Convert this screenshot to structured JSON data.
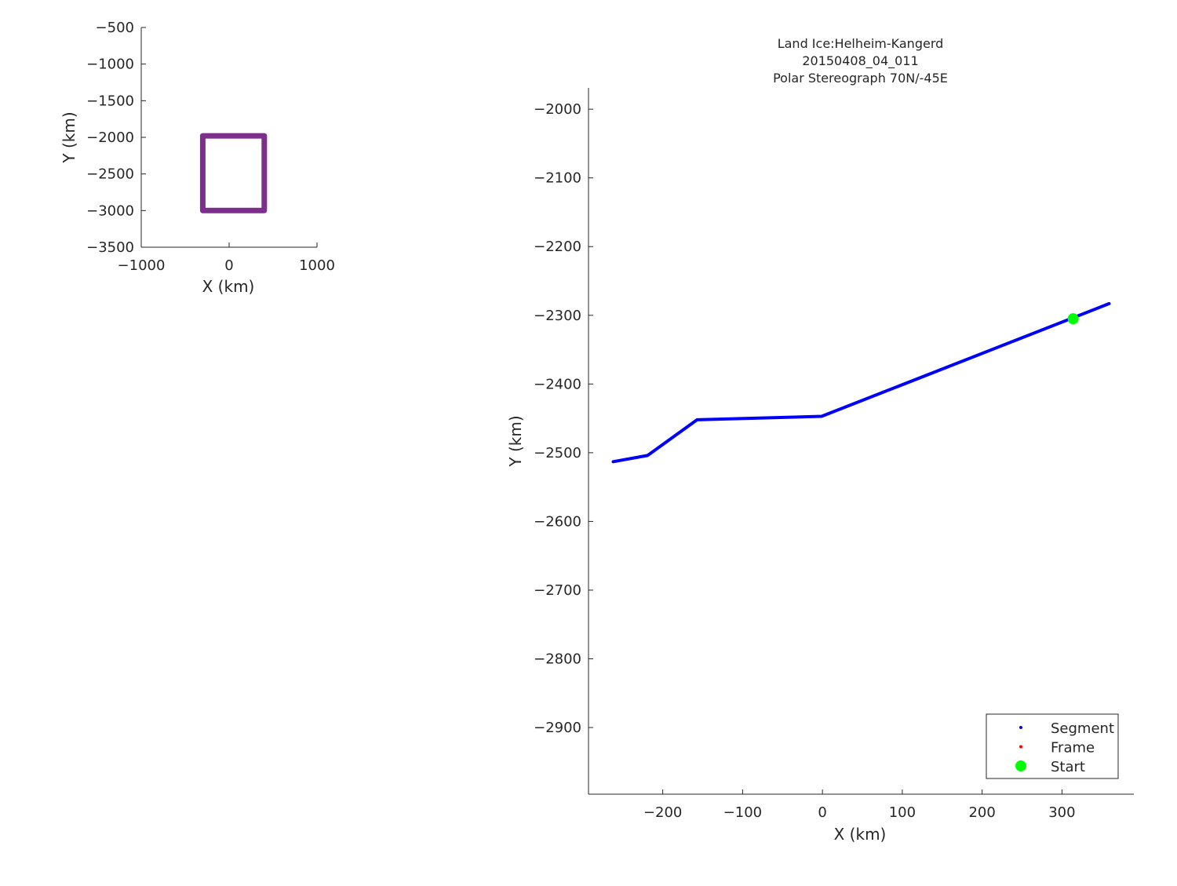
{
  "chart_data": [
    {
      "type": "line",
      "title": [],
      "xlabel": "X (km)",
      "ylabel": "Y (km)",
      "xlim": [
        -1000,
        1000
      ],
      "ylim": [
        -3500,
        -500
      ],
      "xticks": [
        -1000,
        0,
        1000
      ],
      "yticks": [
        -500,
        -1000,
        -1500,
        -2000,
        -2500,
        -3000,
        -3500
      ],
      "xtick_labels": [
        "−1000",
        "0",
        "1000"
      ],
      "ytick_labels": [
        "−500",
        "−1000",
        "−1500",
        "−2000",
        "−2500",
        "−3000",
        "−3500"
      ],
      "grid": false,
      "series": [
        {
          "color": "#7e2f8e",
          "x": [
            -300,
            400,
            400,
            -300,
            -300
          ],
          "y": [
            -1980,
            -1980,
            -3000,
            -3000,
            -1980
          ]
        }
      ]
    },
    {
      "type": "line",
      "title": [
        "Land Ice:Helheim-Kangerd",
        "20150408_04_011",
        "Polar Stereograph 70N/-45E"
      ],
      "xlabel": "X (km)",
      "ylabel": "Y (km)",
      "xlim": [
        -293,
        390
      ],
      "ylim": [
        -2997,
        -1969
      ],
      "xticks": [
        -200,
        -100,
        0,
        100,
        200,
        300
      ],
      "yticks": [
        -2000,
        -2100,
        -2200,
        -2300,
        -2400,
        -2500,
        -2600,
        -2700,
        -2800,
        -2900
      ],
      "xtick_labels": [
        "−200",
        "−100",
        "0",
        "100",
        "200",
        "300"
      ],
      "ytick_labels": [
        "−2000",
        "−2100",
        "−2200",
        "−2300",
        "−2400",
        "−2500",
        "−2600",
        "−2700",
        "−2800",
        "−2900"
      ],
      "grid": false,
      "legend_placement": "bottom-right",
      "series": [
        {
          "name": "Segment",
          "color": "#0000ff",
          "x": [
            -262,
            -219,
            -157,
            -1,
            359
          ],
          "y": [
            -2513,
            -2504,
            -2452,
            -2447,
            -2283
          ]
        },
        {
          "name": "Frame",
          "color": "#ff0000",
          "x": [],
          "y": []
        },
        {
          "name": "Start",
          "color": "#00ff00",
          "x": [
            314
          ],
          "y": [
            -2305
          ]
        }
      ]
    }
  ]
}
